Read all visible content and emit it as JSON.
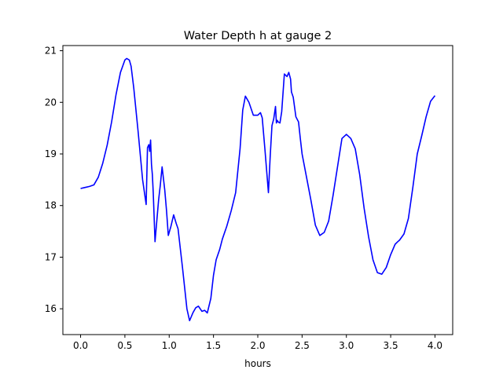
{
  "chart_data": {
    "type": "line",
    "title": "Water Depth h at gauge 2",
    "xlabel": "hours",
    "ylabel": "",
    "xlim": [
      -0.2,
      4.2
    ],
    "ylim": [
      15.5,
      21.1
    ],
    "xticks": [
      0.0,
      0.5,
      1.0,
      1.5,
      2.0,
      2.5,
      3.0,
      3.5,
      4.0
    ],
    "xtick_labels": [
      "0.0",
      "0.5",
      "1.0",
      "1.5",
      "2.0",
      "2.5",
      "3.0",
      "3.5",
      "4.0"
    ],
    "yticks": [
      16,
      17,
      18,
      19,
      20,
      21
    ],
    "ytick_labels": [
      "16",
      "17",
      "18",
      "19",
      "20",
      "21"
    ],
    "grid": false,
    "line_color": "#0000ff",
    "series": [
      {
        "x": [
          0.0,
          0.05,
          0.1,
          0.15,
          0.2,
          0.25,
          0.3,
          0.35,
          0.4,
          0.45,
          0.5,
          0.52,
          0.55,
          0.57,
          0.6,
          0.65,
          0.7,
          0.74,
          0.755,
          0.77,
          0.78,
          0.79,
          0.8,
          0.81,
          0.82,
          0.84,
          0.86,
          0.88,
          0.9,
          0.92,
          0.93,
          0.95,
          0.97,
          0.99,
          1.02,
          1.05,
          1.08,
          1.1,
          1.15,
          1.2,
          1.23,
          1.27,
          1.3,
          1.33,
          1.37,
          1.4,
          1.43,
          1.47,
          1.5,
          1.53,
          1.57,
          1.6,
          1.65,
          1.7,
          1.75,
          1.8,
          1.83,
          1.86,
          1.9,
          1.95,
          2.0,
          2.03,
          2.05,
          2.08,
          2.12,
          2.14,
          2.16,
          2.18,
          2.2,
          2.21,
          2.22,
          2.23,
          2.25,
          2.27,
          2.3,
          2.33,
          2.35,
          2.37,
          2.38,
          2.4,
          2.43,
          2.46,
          2.48,
          2.5,
          2.55,
          2.6,
          2.65,
          2.7,
          2.75,
          2.8,
          2.85,
          2.9,
          2.95,
          3.0,
          3.05,
          3.1,
          3.15,
          3.2,
          3.25,
          3.3,
          3.35,
          3.4,
          3.45,
          3.5,
          3.55,
          3.58,
          3.6,
          3.65,
          3.7,
          3.75,
          3.8,
          3.85,
          3.9,
          3.95,
          4.0
        ],
        "values": [
          18.33,
          18.35,
          18.37,
          18.4,
          18.55,
          18.82,
          19.17,
          19.62,
          20.15,
          20.58,
          20.82,
          20.85,
          20.82,
          20.7,
          20.28,
          19.42,
          18.5,
          18.02,
          19.12,
          19.18,
          19.05,
          19.27,
          18.8,
          18.6,
          18.25,
          17.3,
          17.7,
          18.1,
          18.4,
          18.75,
          18.6,
          18.3,
          17.9,
          17.42,
          17.6,
          17.82,
          17.65,
          17.55,
          16.8,
          16.0,
          15.77,
          15.93,
          16.02,
          16.05,
          15.95,
          15.97,
          15.92,
          16.2,
          16.65,
          16.95,
          17.15,
          17.35,
          17.6,
          17.9,
          18.25,
          19.1,
          19.85,
          20.12,
          20.0,
          19.75,
          19.75,
          19.8,
          19.7,
          19.1,
          18.25,
          18.95,
          19.55,
          19.68,
          19.92,
          19.6,
          19.65,
          19.62,
          19.6,
          19.82,
          20.55,
          20.5,
          20.58,
          20.45,
          20.2,
          20.1,
          19.72,
          19.62,
          19.3,
          19.0,
          18.55,
          18.1,
          17.62,
          17.42,
          17.48,
          17.7,
          18.2,
          18.75,
          19.3,
          19.38,
          19.3,
          19.1,
          18.6,
          17.95,
          17.4,
          16.95,
          16.7,
          16.67,
          16.8,
          17.05,
          17.25,
          17.3,
          17.33,
          17.45,
          17.75,
          18.35,
          19.0,
          19.35,
          19.72,
          20.02,
          20.13
        ]
      }
    ]
  }
}
